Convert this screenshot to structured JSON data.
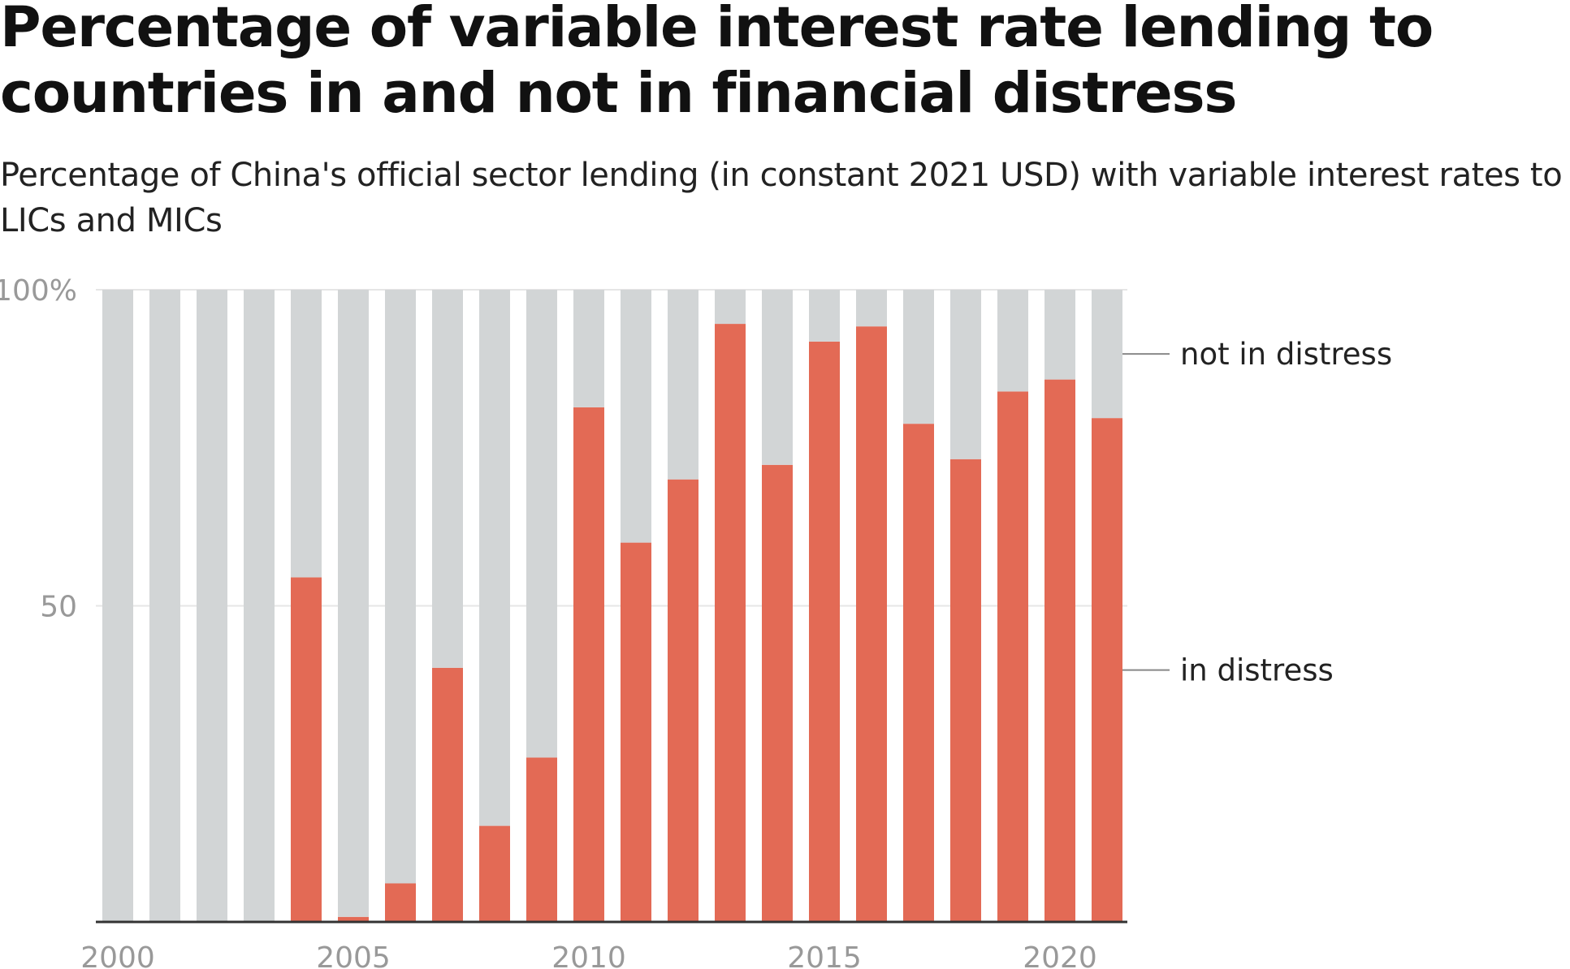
{
  "title": "Percentage of variable interest rate lending to countries in and not in financial distress",
  "subtitle": "Percentage of China's official sector lending (in constant 2021 USD) with variable interest rates to LICs and MICs",
  "colors": {
    "in_distress": "#e36a55",
    "not_in_distress": "#d2d5d6",
    "gridline": "#e6e6e6",
    "baseline": "#333333",
    "leader_line": "#888888"
  },
  "chart_data": {
    "type": "bar",
    "stacked": true,
    "title": "Percentage of variable interest rate lending to countries in and not in financial distress",
    "subtitle": "Percentage of China's official sector lending (in constant 2021 USD) with variable interest rates to LICs and MICs",
    "x": [
      2000,
      2001,
      2002,
      2003,
      2004,
      2005,
      2006,
      2007,
      2008,
      2009,
      2010,
      2011,
      2012,
      2013,
      2014,
      2015,
      2016,
      2017,
      2018,
      2019,
      2020,
      2021
    ],
    "x_tick_labels": [
      "2000",
      "2005",
      "2010",
      "2015",
      "2020"
    ],
    "y_tick_labels": [
      "100%",
      "50"
    ],
    "y_ticks": [
      100,
      50
    ],
    "ylim": [
      0,
      100
    ],
    "grid": true,
    "legend_placement": "right (direct labels)",
    "series": [
      {
        "name": "in distress",
        "values": [
          0,
          0,
          0,
          0,
          54.5,
          0.8,
          6.1,
          40.2,
          15.2,
          26.0,
          81.4,
          60.0,
          70.0,
          94.6,
          72.3,
          91.8,
          94.2,
          78.8,
          73.2,
          83.9,
          85.8,
          79.7
        ]
      },
      {
        "name": "not in distress",
        "values": [
          100,
          100,
          100,
          100,
          45.5,
          99.2,
          93.9,
          59.8,
          84.8,
          74.0,
          18.6,
          40.0,
          30.0,
          5.4,
          27.7,
          8.2,
          5.8,
          21.2,
          26.8,
          16.1,
          14.2,
          20.3
        ]
      }
    ]
  }
}
